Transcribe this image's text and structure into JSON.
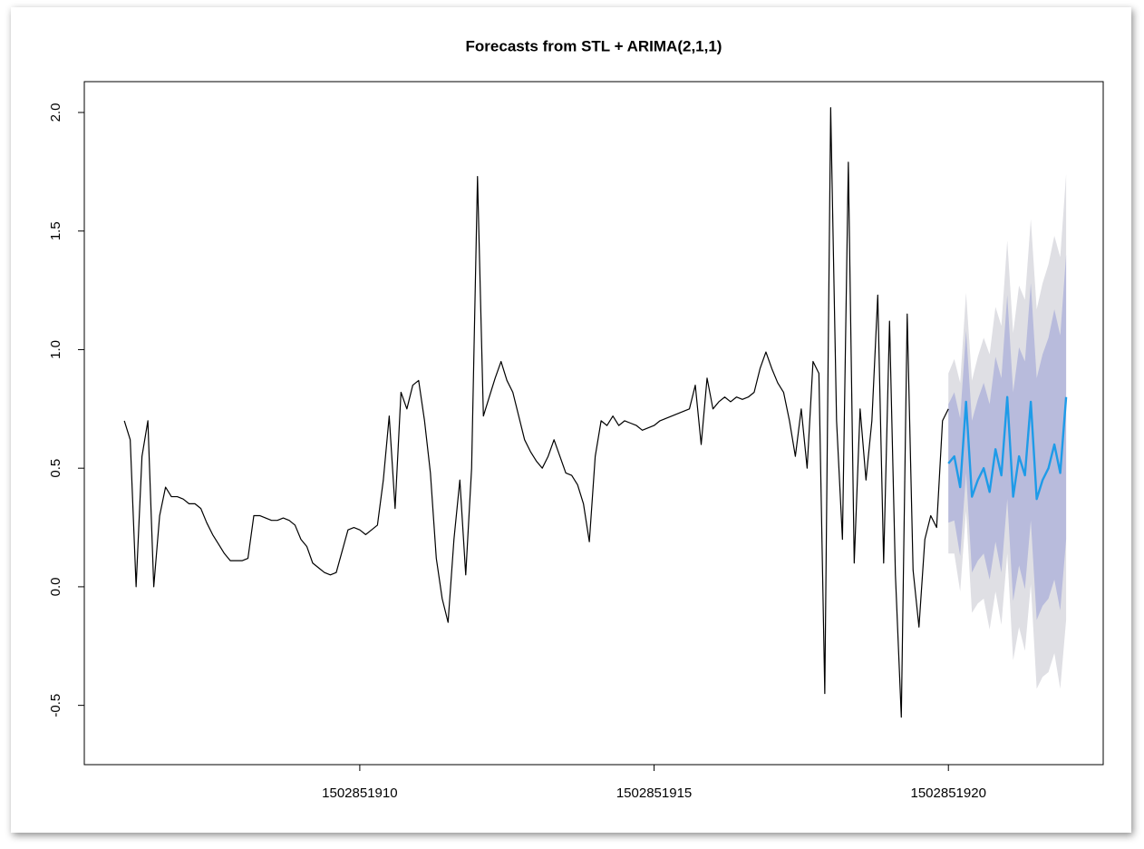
{
  "chart_data": {
    "type": "line",
    "title": "Forecasts from STL +  ARIMA(2,1,1)",
    "xlim": [
      1502851905.32,
      1502851922.63
    ],
    "ylim": [
      -0.75,
      2.13
    ],
    "xticks": [
      1502851910,
      1502851915,
      1502851920
    ],
    "yticks": [
      -0.5,
      {
        "value": 0,
        "label": "0.0"
      },
      0.5,
      {
        "value": 1,
        "label": "1.0"
      },
      1.5,
      {
        "value": 2,
        "label": "2.0"
      }
    ],
    "series": [
      {
        "color": "#000000",
        "x": [
          1502851906,
          1502851906.1,
          1502851906.2,
          1502851906.3,
          1502851906.4,
          1502851906.5,
          1502851906.6,
          1502851906.7,
          1502851906.8,
          1502851906.9,
          1502851907,
          1502851907.1,
          1502851907.2,
          1502851907.3,
          1502851907.4,
          1502851907.5,
          1502851907.6,
          1502851907.7,
          1502851907.8,
          1502851907.9,
          1502851908,
          1502851908.1,
          1502851908.2,
          1502851908.3,
          1502851908.4,
          1502851908.5,
          1502851908.6,
          1502851908.7,
          1502851908.8,
          1502851908.9,
          1502851909,
          1502851909.1,
          1502851909.2,
          1502851909.3,
          1502851909.4,
          1502851909.5,
          1502851909.6,
          1502851909.7,
          1502851909.8,
          1502851909.9,
          1502851910,
          1502851910.1,
          1502851910.2,
          1502851910.3,
          1502851910.4,
          1502851910.5,
          1502851910.6,
          1502851910.7,
          1502851910.8,
          1502851910.9,
          1502851911,
          1502851911.1,
          1502851911.2,
          1502851911.3,
          1502851911.4,
          1502851911.5,
          1502851911.6,
          1502851911.7,
          1502851911.8,
          1502851911.9,
          1502851912,
          1502851912.1,
          1502851912.2,
          1502851912.3,
          1502851912.4,
          1502851912.5,
          1502851912.6,
          1502851912.7,
          1502851912.8,
          1502851912.9,
          1502851913,
          1502851913.1,
          1502851913.2,
          1502851913.3,
          1502851913.4,
          1502851913.5,
          1502851913.6,
          1502851913.7,
          1502851913.8,
          1502851913.9,
          1502851914,
          1502851914.1,
          1502851914.2,
          1502851914.3,
          1502851914.4,
          1502851914.5,
          1502851914.6,
          1502851914.7,
          1502851914.8,
          1502851914.9,
          1502851915,
          1502851915.1,
          1502851915.2,
          1502851915.3,
          1502851915.4,
          1502851915.5,
          1502851915.6,
          1502851915.7,
          1502851915.8,
          1502851915.9,
          1502851916,
          1502851916.1,
          1502851916.2,
          1502851916.3,
          1502851916.4,
          1502851916.5,
          1502851916.6,
          1502851916.7,
          1502851916.8,
          1502851916.9,
          1502851917,
          1502851917.1,
          1502851917.2,
          1502851917.3,
          1502851917.4,
          1502851917.5,
          1502851917.6,
          1502851917.7,
          1502851917.8,
          1502851917.9,
          1502851918,
          1502851918.1,
          1502851918.2,
          1502851918.3,
          1502851918.4,
          1502851918.5,
          1502851918.6,
          1502851918.7,
          1502851918.8,
          1502851918.9,
          1502851919,
          1502851919.1,
          1502851919.2,
          1502851919.3,
          1502851919.4,
          1502851919.5,
          1502851919.6,
          1502851919.7,
          1502851919.8,
          1502851919.9,
          1502851920
        ],
        "values": [
          0.7,
          0.62,
          0,
          0.55,
          0.7,
          0,
          0.3,
          0.42,
          0.38,
          0.38,
          0.37,
          0.35,
          0.35,
          0.33,
          0.27,
          0.22,
          0.18,
          0.14,
          0.11,
          0.11,
          0.11,
          0.12,
          0.3,
          0.3,
          0.29,
          0.28,
          0.28,
          0.29,
          0.28,
          0.26,
          0.2,
          0.17,
          0.1,
          0.08,
          0.06,
          0.05,
          0.06,
          0.15,
          0.24,
          0.25,
          0.24,
          0.22,
          0.24,
          0.26,
          0.45,
          0.72,
          0.33,
          0.82,
          0.75,
          0.85,
          0.87,
          0.7,
          0.48,
          0.12,
          -0.05,
          -0.15,
          0.2,
          0.45,
          0.05,
          0.5,
          1.73,
          0.72,
          0.8,
          0.88,
          0.95,
          0.87,
          0.82,
          0.72,
          0.62,
          0.57,
          0.53,
          0.5,
          0.55,
          0.62,
          0.55,
          0.48,
          0.47,
          0.43,
          0.35,
          0.19,
          0.55,
          0.7,
          0.68,
          0.72,
          0.68,
          0.7,
          0.69,
          0.68,
          0.66,
          0.67,
          0.68,
          0.7,
          0.71,
          0.72,
          0.73,
          0.74,
          0.75,
          0.85,
          0.6,
          0.88,
          0.75,
          0.78,
          0.8,
          0.78,
          0.8,
          0.79,
          0.8,
          0.82,
          0.92,
          0.99,
          0.92,
          0.86,
          0.82,
          0.7,
          0.55,
          0.75,
          0.5,
          0.95,
          0.9,
          -0.45,
          2.02,
          0.7,
          0.2,
          1.79,
          0.1,
          0.75,
          0.45,
          0.7,
          1.23,
          0.1,
          1.12,
          0.05,
          -0.55,
          1.15,
          0.07,
          -0.17,
          0.2,
          0.3,
          0.25,
          0.7,
          0.75
        ]
      },
      {
        "color": "#1e9be8",
        "x": [
          1502851920,
          1502851920.1,
          1502851920.2,
          1502851920.3,
          1502851920.4,
          1502851920.5,
          1502851920.6,
          1502851920.7,
          1502851920.8,
          1502851920.9,
          1502851921,
          1502851921.1,
          1502851921.2,
          1502851921.3,
          1502851921.4,
          1502851921.5,
          1502851921.6,
          1502851921.7,
          1502851921.8,
          1502851921.9,
          1502851922
        ],
        "values": [
          0.52,
          0.55,
          0.42,
          0.78,
          0.38,
          0.45,
          0.5,
          0.4,
          0.58,
          0.47,
          0.8,
          0.38,
          0.55,
          0.47,
          0.78,
          0.37,
          0.45,
          0.5,
          0.6,
          0.48,
          0.8
        ],
        "intervals": [
          {
            "color": "#dfdfe4",
            "lower": [
              0.14,
              0.14,
              -0.02,
              0.32,
              -0.11,
              -0.07,
              -0.05,
              -0.18,
              -0.02,
              -0.16,
              0.14,
              -0.31,
              -0.17,
              -0.27,
              0.01,
              -0.43,
              -0.38,
              -0.36,
              -0.28,
              -0.43,
              -0.14
            ],
            "upper": [
              0.9,
              0.96,
              0.86,
              1.24,
              0.87,
              0.97,
              1.05,
              0.98,
              1.18,
              1.1,
              1.46,
              1.07,
              1.27,
              1.21,
              1.55,
              1.17,
              1.28,
              1.36,
              1.48,
              1.39,
              1.74
            ]
          },
          {
            "color": "#b8bbdc",
            "lower": [
              0.27,
              0.28,
              0.13,
              0.48,
              0.06,
              0.11,
              0.14,
              0.03,
              0.19,
              0.06,
              0.37,
              -0.06,
              0.09,
              -0.01,
              0.28,
              -0.14,
              -0.08,
              -0.05,
              0.03,
              -0.1,
              0.2
            ],
            "upper": [
              0.77,
              0.82,
              0.71,
              1.08,
              0.7,
              0.79,
              0.86,
              0.77,
              0.97,
              0.88,
              1.23,
              0.82,
              1.01,
              0.95,
              1.28,
              0.88,
              0.98,
              1.05,
              1.17,
              1.06,
              1.4
            ]
          }
        ]
      }
    ]
  }
}
